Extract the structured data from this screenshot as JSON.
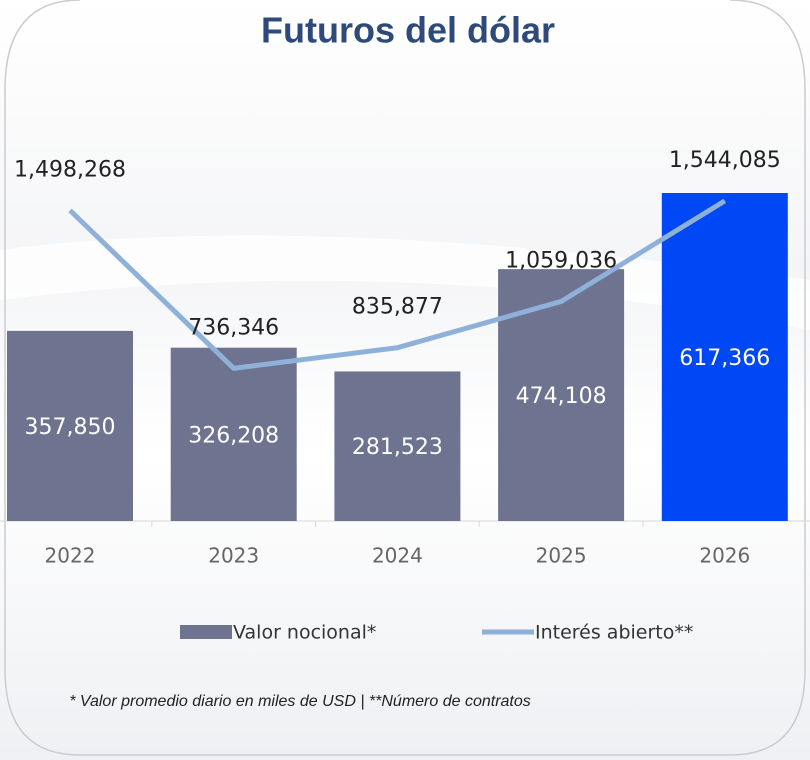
{
  "chart_data": {
    "type": "bar_line",
    "title": "Futuros del dólar",
    "categories": [
      "2022",
      "2023",
      "2024",
      "2025",
      "2026"
    ],
    "series": [
      {
        "name": "Valor nocional*",
        "type": "bar",
        "color": "#6e7490",
        "colors": [
          "#6e7490",
          "#6e7490",
          "#6e7490",
          "#6e7490",
          "#0047f5"
        ],
        "values": [
          357850,
          326208,
          281523,
          474108,
          617366
        ],
        "value_labels": [
          "357,850",
          "326,208",
          "281,523",
          "474,108",
          "617,366"
        ]
      },
      {
        "name": "Interés abierto**",
        "type": "line",
        "axis": "y2",
        "color": "#8fb0d9",
        "values": [
          1498268,
          736346,
          835877,
          1059036,
          1544085
        ],
        "value_labels": [
          "1,498,268",
          "736,346",
          "835,877",
          "1,059,036",
          "1,544,085"
        ]
      }
    ],
    "ylim": [
      0,
      800000
    ],
    "y2lim": [
      0,
      2050000
    ],
    "legend": "bottom",
    "footnote": "* Valor promedio diario en miles de USD | **Número de contratos"
  }
}
